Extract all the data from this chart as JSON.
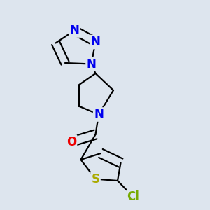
{
  "bg_color": "#dde5ee",
  "atom_colors": {
    "N": "#0000ee",
    "O": "#ee0000",
    "S": "#aaaa00",
    "Cl": "#77aa00",
    "C": "#000000"
  },
  "bond_color": "#000000",
  "bond_width": 1.6,
  "figsize": [
    3.0,
    3.0
  ],
  "dpi": 100,
  "font_size_atom": 12
}
